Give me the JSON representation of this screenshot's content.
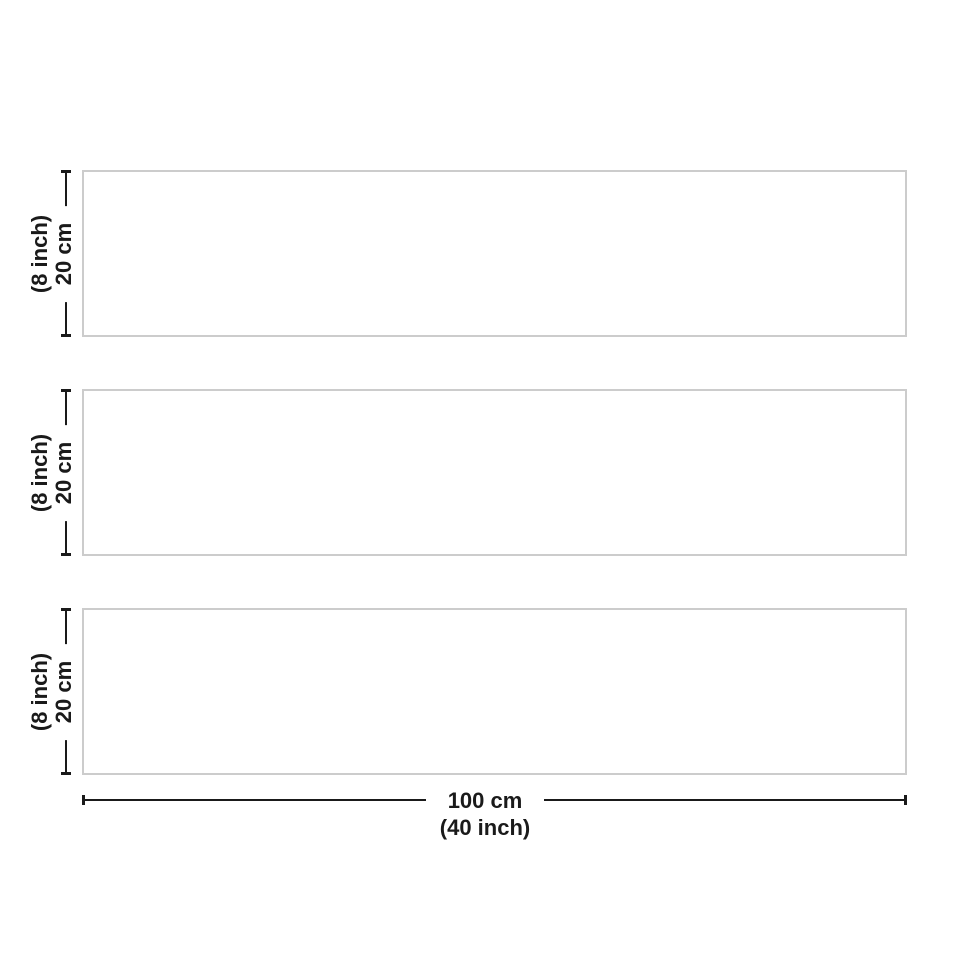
{
  "diagram": {
    "type": "product-dimension-diagram",
    "subject": "three-panel canvas set",
    "panel_count": 3,
    "colors": {
      "background": "#ffffff",
      "panel_border": "#cccccc",
      "dimension_line": "#1a1a1a",
      "text": "#1a1a1a"
    },
    "panels": [
      {
        "height_inch": "(8 inch)",
        "height_cm": "20 cm"
      },
      {
        "height_inch": "(8 inch)",
        "height_cm": "20 cm"
      },
      {
        "height_inch": "(8 inch)",
        "height_cm": "20 cm"
      }
    ],
    "width": {
      "cm": "100 cm",
      "inch": "(40 inch)"
    }
  }
}
